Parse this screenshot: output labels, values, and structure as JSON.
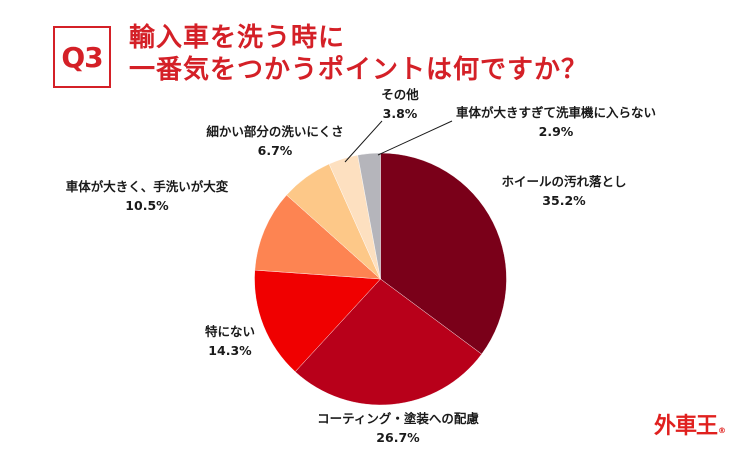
{
  "header": {
    "question_badge": "Q3",
    "title_line1": "輸入車を洗う時に",
    "title_line2": "一番気をつかうポイントは何ですか？"
  },
  "logo": {
    "text": "外車王",
    "mark": "®"
  },
  "colors": {
    "accent": "#d42027",
    "slice_wheel": "#7a0019",
    "slice_coating": "#b8001a",
    "slice_none": "#f00000",
    "slice_large_body": "#fd8452",
    "slice_detail": "#fdc888",
    "slice_other": "#fde0c0",
    "slice_carwash": "#b5b5bb"
  },
  "chart_data": {
    "type": "pie",
    "title": "輸入車を洗う時に一番気をつかうポイントは何ですか？",
    "start_angle": "12 o'clock",
    "direction": "clockwise",
    "categories": [
      "ホイールの汚れ落とし",
      "コーティング・塗装への配慮",
      "特にない",
      "車体が大きく、手洗いが大変",
      "細かい部分の洗いにくさ",
      "その他",
      "車体が大きすぎて洗車機に入らない"
    ],
    "values": [
      35.2,
      26.7,
      14.3,
      10.5,
      6.7,
      3.8,
      2.9
    ],
    "value_labels": [
      "35.2%",
      "26.7%",
      "14.3%",
      "10.5%",
      "6.7%",
      "3.8%",
      "2.9%"
    ],
    "colors": [
      "#7a0019",
      "#b8001a",
      "#f00000",
      "#fd8452",
      "#fdc888",
      "#fde0c0",
      "#b5b5bb"
    ],
    "unit": "%",
    "legend": "none (direct labels)"
  },
  "labels": [
    {
      "name": "ホイールの汚れ落とし",
      "value": "35.2%"
    },
    {
      "name": "コーティング・塗装への配慮",
      "value": "26.7%"
    },
    {
      "name": "特にない",
      "value": "14.3%"
    },
    {
      "name": "車体が大きく、手洗いが大変",
      "value": "10.5%"
    },
    {
      "name": "細かい部分の洗いにくさ",
      "value": "6.7%"
    },
    {
      "name": "その他",
      "value": "3.8%"
    },
    {
      "name": "車体が大きすぎて洗車機に入らない",
      "value": "2.9%"
    }
  ]
}
